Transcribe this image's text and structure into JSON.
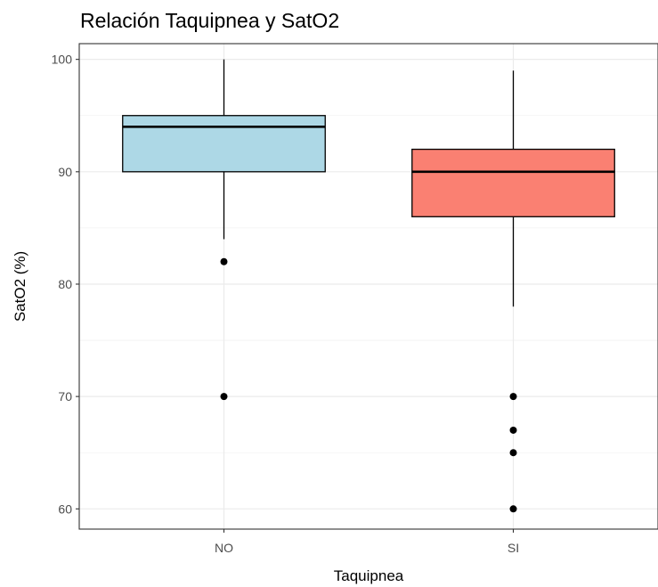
{
  "chart_data": {
    "type": "boxplot",
    "title": "Relación Taquipnea y SatO2",
    "xlabel": "Taquipnea",
    "ylabel": "SatO2 (%)",
    "ylim": [
      58.2,
      101.4
    ],
    "yticks": [
      60,
      70,
      80,
      90,
      100
    ],
    "grid": true,
    "legend": "none",
    "categories": [
      "NO",
      "SI"
    ],
    "boxes": [
      {
        "category": "NO",
        "whisker_low": 84,
        "q1": 90,
        "median": 94,
        "q3": 95,
        "whisker_high": 100,
        "outliers": [
          82,
          70
        ],
        "fill": "#add8e6"
      },
      {
        "category": "SI",
        "whisker_low": 78,
        "q1": 86,
        "median": 90,
        "q3": 92,
        "whisker_high": 99,
        "outliers": [
          70,
          67,
          65,
          60
        ],
        "fill": "#fa8072"
      }
    ]
  }
}
